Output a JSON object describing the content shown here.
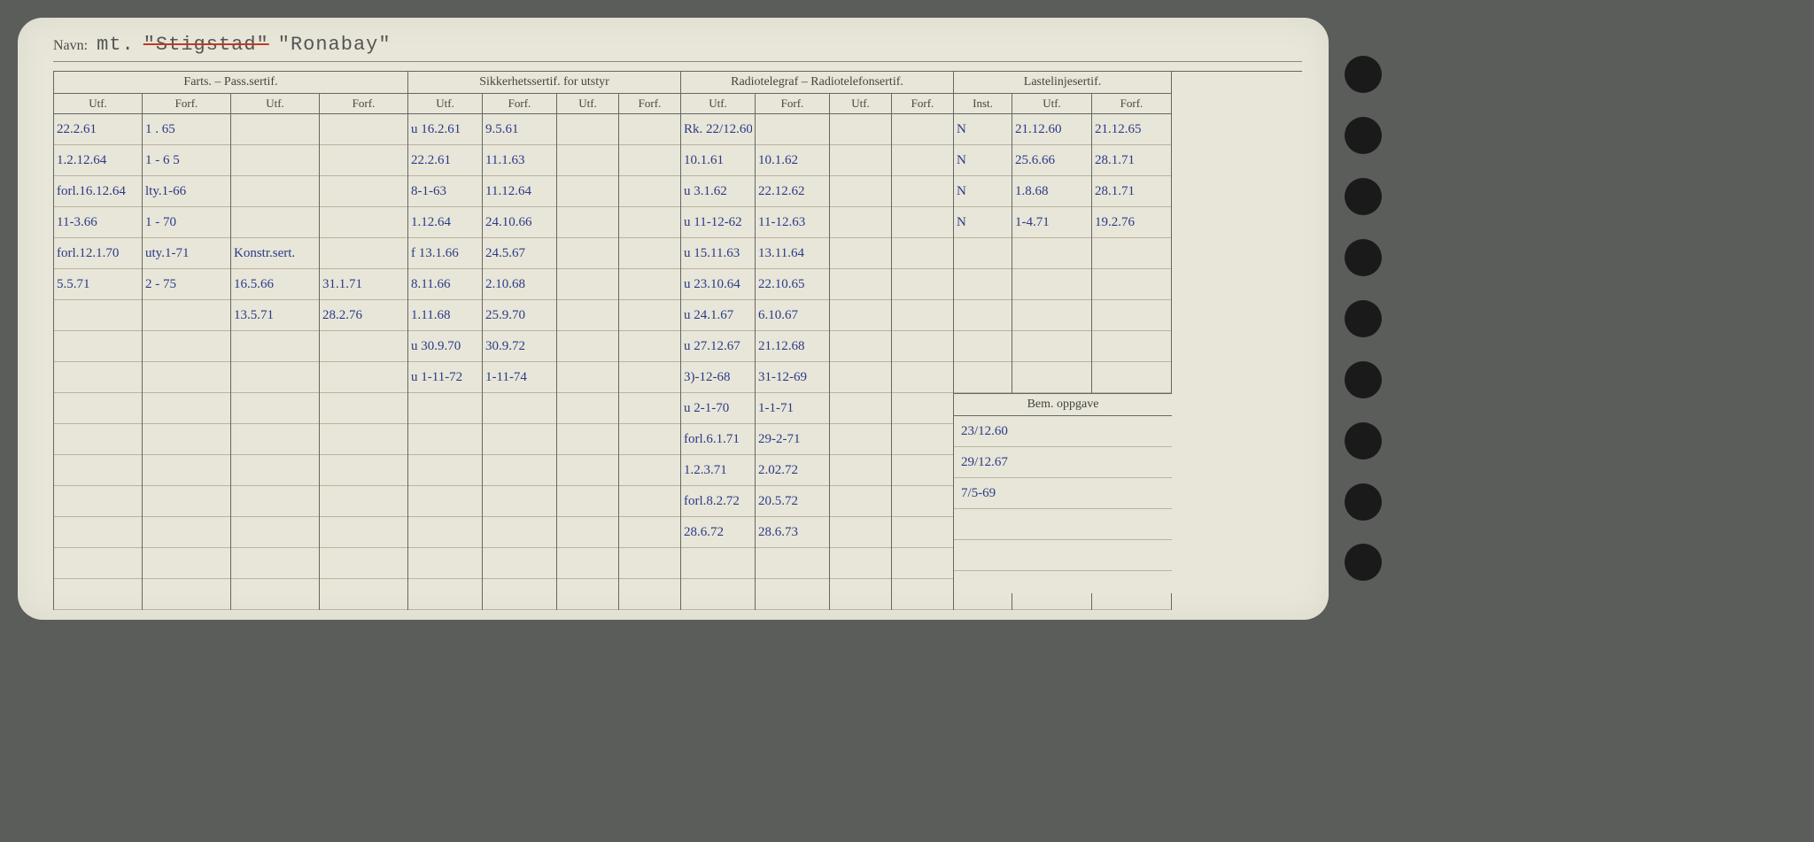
{
  "navn": {
    "label": "Navn:",
    "prefix": "mt.",
    "name1": "\"Stigstad\"",
    "name2": "\"Ronabay\""
  },
  "groups": {
    "farts": "Farts. – Pass.sertif.",
    "sikkerhet": "Sikkerhetssertif. for utstyr",
    "radio": "Radiotelegraf – Radiotelefonsertif.",
    "lastelinje": "Lastelinjesertif.",
    "bem": "Bem. oppgave"
  },
  "sub": {
    "utf": "Utf.",
    "forf": "Forf.",
    "inst": "Inst."
  },
  "farts": {
    "utf1": [
      "22.2.61",
      "1.2.12.64",
      "forl.16.12.64",
      "11-3.66",
      "forl.12.1.70",
      "5.5.71"
    ],
    "forf1": [
      "1 . 65",
      "1 - 6 5",
      "lty.1-66",
      "1 - 70",
      "uty.1-71",
      "2 - 75"
    ],
    "utf2": [
      "",
      "",
      "",
      "",
      "Konstr.sert.",
      "16.5.66",
      "13.5.71"
    ],
    "forf2": [
      "",
      "",
      "",
      "",
      "",
      "31.1.71",
      "28.2.76"
    ]
  },
  "sikkerhet": {
    "utf1": [
      "u 16.2.61",
      "22.2.61",
      "8-1-63",
      "1.12.64",
      "f 13.1.66",
      "8.11.66",
      "1.11.68",
      "u 30.9.70",
      "u 1-11-72"
    ],
    "forf1": [
      "9.5.61",
      "11.1.63",
      "11.12.64",
      "24.10.66",
      "24.5.67",
      "2.10.68",
      "25.9.70",
      "30.9.72",
      "1-11-74"
    ]
  },
  "radio": {
    "utf1": [
      "Rk. 22/12.60",
      "10.1.61",
      "u 3.1.62",
      "u 11-12-62",
      "u 15.11.63",
      "u 23.10.64",
      "u 24.1.67",
      "u 27.12.67",
      "3)-12-68",
      "u 2-1-70",
      "forl.6.1.71",
      "1.2.3.71",
      "forl.8.2.72",
      "28.6.72"
    ],
    "forf1": [
      "",
      "10.1.62",
      "22.12.62",
      "11-12.63",
      "13.11.64",
      "22.10.65",
      "6.10.67",
      "21.12.68",
      "31-12-69",
      "1-1-71",
      "29-2-71",
      "2.02.72",
      "20.5.72",
      "28.6.73"
    ]
  },
  "lastelinje": {
    "inst": [
      "N",
      "N",
      "N",
      "N"
    ],
    "utf": [
      "21.12.60",
      "25.6.66",
      "1.8.68",
      "1-4.71"
    ],
    "forf": [
      "21.12.65",
      "28.1.71",
      "28.1.71",
      "19.2.76"
    ]
  },
  "bem": [
    "23/12.60",
    "29/12.67",
    "7/5-69"
  ]
}
